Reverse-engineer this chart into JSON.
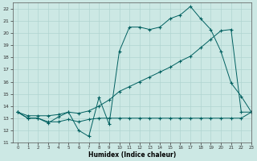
{
  "xlabel": "Humidex (Indice chaleur)",
  "xlim": [
    -0.5,
    23
  ],
  "ylim": [
    11,
    22.5
  ],
  "yticks": [
    11,
    12,
    13,
    14,
    15,
    16,
    17,
    18,
    19,
    20,
    21,
    22
  ],
  "xticks": [
    0,
    1,
    2,
    3,
    4,
    5,
    6,
    7,
    8,
    9,
    10,
    11,
    12,
    13,
    14,
    15,
    16,
    17,
    18,
    19,
    20,
    21,
    22,
    23
  ],
  "bg_color": "#cce8e4",
  "grid_color": "#b0d4d0",
  "line_color": "#006060",
  "line1_x": [
    0,
    1,
    2,
    3,
    4,
    5,
    6,
    7,
    8,
    9,
    10,
    11,
    12,
    13,
    14,
    15,
    16,
    17,
    18,
    19,
    20,
    21,
    22,
    23
  ],
  "line1_y": [
    13.5,
    13.0,
    13.0,
    12.6,
    13.1,
    13.5,
    12.0,
    11.5,
    14.7,
    12.5,
    18.5,
    20.5,
    20.5,
    20.3,
    20.5,
    21.2,
    21.5,
    22.2,
    21.2,
    20.3,
    18.5,
    15.9,
    14.8,
    13.5
  ],
  "line2_x": [
    0,
    1,
    2,
    3,
    4,
    5,
    6,
    7,
    8,
    9,
    10,
    11,
    12,
    13,
    14,
    15,
    16,
    17,
    18,
    19,
    20,
    21,
    22,
    23
  ],
  "line2_y": [
    13.5,
    13.2,
    13.2,
    13.2,
    13.3,
    13.5,
    13.4,
    13.6,
    14.0,
    14.5,
    15.2,
    15.6,
    16.0,
    16.4,
    16.8,
    17.2,
    17.7,
    18.1,
    18.8,
    19.5,
    20.2,
    20.3,
    13.5,
    13.5
  ],
  "line3_x": [
    0,
    1,
    2,
    3,
    4,
    5,
    6,
    7,
    8,
    9,
    10,
    11,
    12,
    13,
    14,
    15,
    16,
    17,
    18,
    19,
    20,
    21,
    22,
    23
  ],
  "line3_y": [
    13.5,
    13.0,
    13.0,
    12.7,
    12.7,
    12.9,
    12.7,
    12.9,
    13.0,
    13.0,
    13.0,
    13.0,
    13.0,
    13.0,
    13.0,
    13.0,
    13.0,
    13.0,
    13.0,
    13.0,
    13.0,
    13.0,
    13.0,
    13.5
  ]
}
